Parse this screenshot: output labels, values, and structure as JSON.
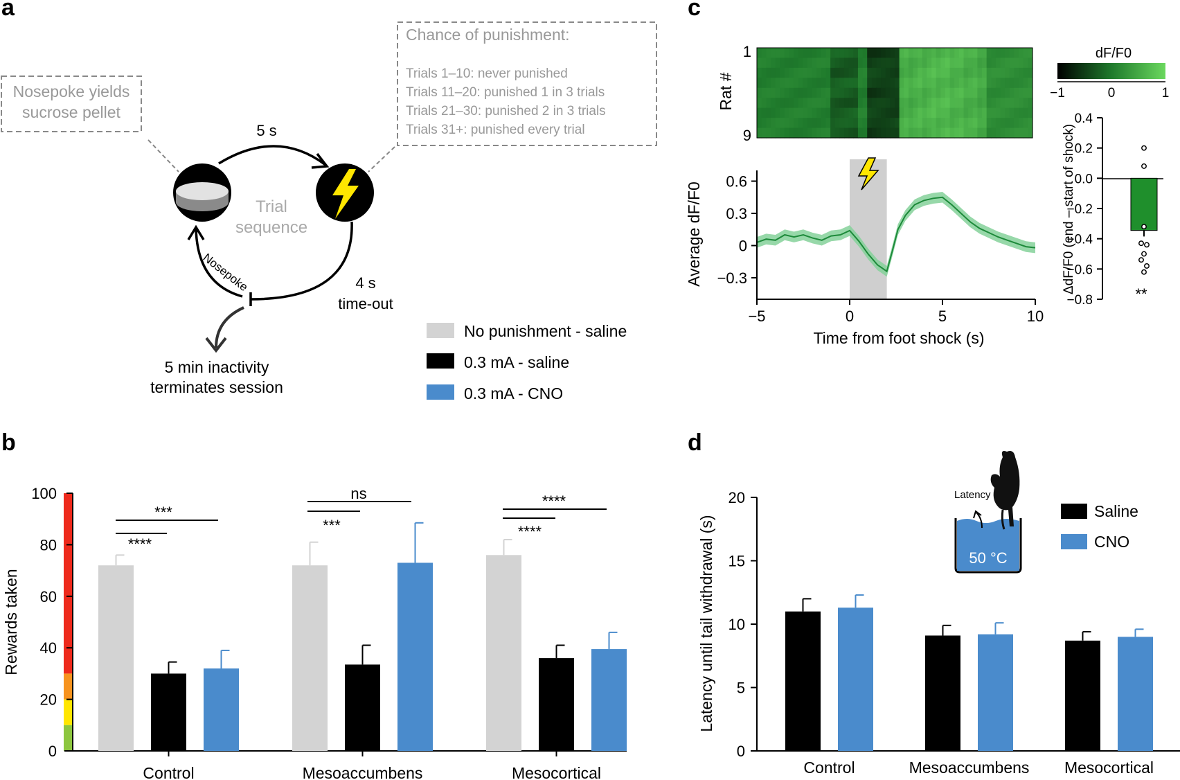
{
  "panel_labels": {
    "a": "a",
    "b": "b",
    "c": "c",
    "d": "d"
  },
  "panel_a": {
    "nosepoke_box": [
      "Nosepoke yields",
      "sucrose pellet"
    ],
    "punishment_box": {
      "title": "Chance of punishment:",
      "lines": [
        "Trials 1–10: never punished",
        "Trials 11–20: punished 1 in 3 trials",
        "Trials 21–30: punished 2 in 3 trials",
        "Trials 31+: punished every trial"
      ]
    },
    "delay_label": "5 s",
    "center_label": [
      "Trial",
      "sequence"
    ],
    "timeout_label": [
      "4 s",
      "time-out"
    ],
    "nosepoke_arrow_label": "Nosepoke",
    "inactivity_label": [
      "5 min inactivity",
      "terminates session"
    ],
    "icons": [
      "sucrose-pellet-icon",
      "lightning-bolt-icon"
    ]
  },
  "legend_ab": [
    {
      "label": "No punishment - saline",
      "color": "#d3d3d3"
    },
    {
      "label": "0.3 mA - saline",
      "color": "#000000"
    },
    {
      "label": "0.3 mA - CNO",
      "color": "#4a8bcc"
    }
  ],
  "chart_data": [
    {
      "id": "b",
      "type": "bar",
      "ylabel": "Rewards taken",
      "ylim": [
        0,
        100
      ],
      "yticks": [
        0,
        20,
        40,
        60,
        80,
        100
      ],
      "categories": [
        "Control",
        "Mesoaccumbens",
        "Mesocortical"
      ],
      "series": [
        {
          "name": "No punishment - saline",
          "color": "#d3d3d3",
          "values": [
            72,
            72,
            76
          ],
          "errors": [
            4,
            9,
            6
          ]
        },
        {
          "name": "0.3 mA - saline",
          "color": "#000000",
          "values": [
            30,
            33.5,
            36
          ],
          "errors": [
            4.5,
            7.5,
            5
          ]
        },
        {
          "name": "0.3 mA - CNO",
          "color": "#4a8bcc",
          "values": [
            32,
            73,
            39.5
          ],
          "errors": [
            7,
            15.5,
            6.5
          ]
        }
      ],
      "significance": [
        {
          "group": "Control",
          "upper": "***",
          "lower": "****"
        },
        {
          "group": "Mesoaccumbens",
          "upper": "ns",
          "lower": "***"
        },
        {
          "group": "Mesocortical",
          "upper": "****",
          "lower": "****"
        }
      ],
      "side_scale_colors": [
        "#ee2a1c",
        "#f7931e",
        "#ffe600",
        "#8dc63f"
      ]
    },
    {
      "id": "c-heatmap",
      "type": "heatmap",
      "ylabel": "Rat #",
      "row_labels": [
        "1",
        "9"
      ],
      "rows": 9,
      "colorbar": {
        "label": "dF/F0",
        "ticks": [
          "−1",
          "0",
          "1"
        ],
        "range": [
          -1,
          1
        ]
      }
    },
    {
      "id": "c-trace",
      "type": "line",
      "xlabel": "Time from foot shock (s)",
      "ylabel": "Average dF/F0",
      "xlim": [
        -5,
        10
      ],
      "ylim": [
        -0.5,
        0.7
      ],
      "xticks": [
        "−5",
        "0",
        "5",
        "10"
      ],
      "yticks": [
        "0.6",
        "0.3",
        "0",
        "−0.3"
      ],
      "shock_window": [
        0,
        2
      ],
      "x": [
        -5,
        -4.5,
        -4,
        -3.5,
        -3,
        -2.5,
        -2,
        -1.5,
        -1,
        -0.5,
        0,
        0.5,
        1,
        1.5,
        2,
        2.3,
        2.6,
        3,
        3.5,
        4,
        4.5,
        5,
        5.5,
        6,
        6.5,
        7,
        7.5,
        8,
        8.5,
        9,
        9.5,
        10
      ],
      "y": [
        0.03,
        0.06,
        0.05,
        0.1,
        0.08,
        0.1,
        0.07,
        0.05,
        0.09,
        0.1,
        0.14,
        0.04,
        -0.08,
        -0.18,
        -0.24,
        -0.05,
        0.15,
        0.28,
        0.38,
        0.42,
        0.44,
        0.45,
        0.38,
        0.3,
        0.22,
        0.16,
        0.12,
        0.08,
        0.05,
        0.02,
        -0.01,
        -0.02
      ],
      "band": 0.05
    },
    {
      "id": "c-bar",
      "type": "bar",
      "ylabel": "ΔdF/F0 (end – start of shock)",
      "ylim": [
        -0.8,
        0.4
      ],
      "yticks": [
        "0.4",
        "0.2",
        "0.0",
        "−0.2",
        "−0.4",
        "−0.6",
        "−0.8"
      ],
      "values": [
        -0.345
      ],
      "error": 0.04,
      "points": [
        0.2,
        0.08,
        -0.32,
        -0.43,
        -0.44,
        -0.5,
        -0.54,
        -0.58,
        -0.62
      ],
      "significance": "**"
    },
    {
      "id": "d",
      "type": "bar",
      "ylabel": "Latency until tail withdrawal (s)",
      "ylim": [
        0,
        20
      ],
      "yticks": [
        0,
        5,
        10,
        15,
        20
      ],
      "categories": [
        "Control",
        "Mesoaccumbens",
        "Mesocortical"
      ],
      "series": [
        {
          "name": "Saline",
          "color": "#000000",
          "values": [
            11.0,
            9.1,
            8.7
          ],
          "errors": [
            1.0,
            0.8,
            0.7
          ]
        },
        {
          "name": "CNO",
          "color": "#4a8bcc",
          "values": [
            11.3,
            9.2,
            9.0
          ],
          "errors": [
            1.0,
            0.9,
            0.6
          ]
        }
      ],
      "inset": {
        "latency_label": "Latency",
        "temperature": "50 °C"
      }
    }
  ]
}
